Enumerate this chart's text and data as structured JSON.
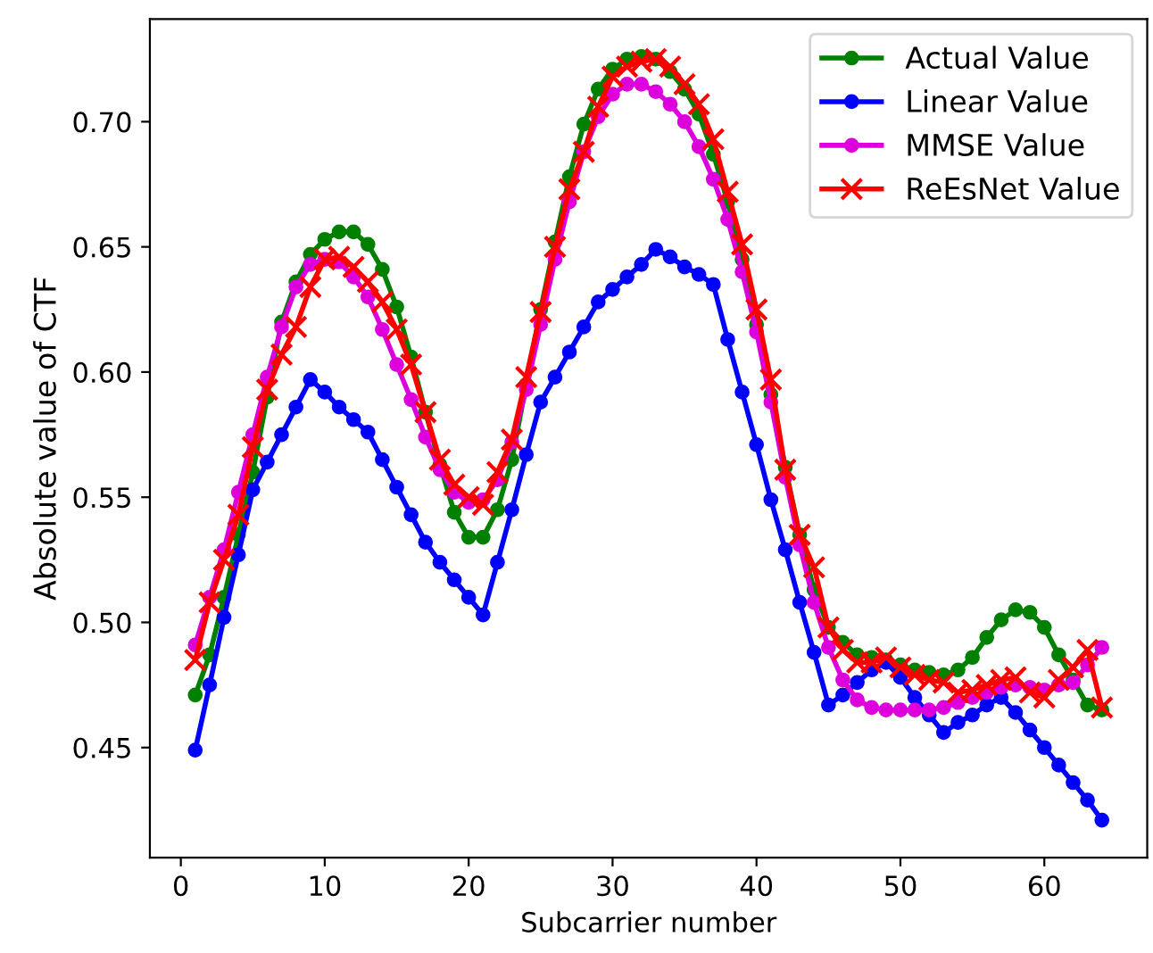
{
  "chart_data": {
    "type": "line",
    "xlabel": "Subcarrier number",
    "ylabel": "Absolute value of CTF",
    "x": [
      1,
      2,
      3,
      4,
      5,
      6,
      7,
      8,
      9,
      10,
      11,
      12,
      13,
      14,
      15,
      16,
      17,
      18,
      19,
      20,
      21,
      22,
      23,
      24,
      25,
      26,
      27,
      28,
      29,
      30,
      31,
      32,
      33,
      34,
      35,
      36,
      37,
      38,
      39,
      40,
      41,
      42,
      43,
      44,
      45,
      46,
      47,
      48,
      49,
      50,
      51,
      52,
      53,
      54,
      55,
      56,
      57,
      58,
      59,
      60,
      61,
      62,
      63,
      64
    ],
    "series": [
      {
        "name": "Actual Value",
        "color": "#008000",
        "marker": "circle",
        "values": [
          0.471,
          0.487,
          0.51,
          0.535,
          0.56,
          0.59,
          0.62,
          0.636,
          0.647,
          0.653,
          0.656,
          0.656,
          0.651,
          0.641,
          0.626,
          0.606,
          0.584,
          0.563,
          0.544,
          0.534,
          0.534,
          0.545,
          0.565,
          0.595,
          0.625,
          0.652,
          0.678,
          0.699,
          0.713,
          0.721,
          0.725,
          0.726,
          0.725,
          0.72,
          0.713,
          0.703,
          0.687,
          0.668,
          0.645,
          0.619,
          0.591,
          0.562,
          0.535,
          0.513,
          0.498,
          0.492,
          0.487,
          0.486,
          0.485,
          0.483,
          0.481,
          0.48,
          0.479,
          0.481,
          0.486,
          0.494,
          0.501,
          0.505,
          0.504,
          0.498,
          0.487,
          0.477,
          0.467,
          0.465
        ]
      },
      {
        "name": "Linear Value",
        "color": "#0000ff",
        "marker": "circle",
        "values": [
          0.449,
          0.475,
          0.502,
          0.527,
          0.553,
          0.564,
          0.575,
          0.586,
          0.597,
          0.592,
          0.586,
          0.581,
          0.576,
          0.565,
          0.554,
          0.543,
          0.532,
          0.524,
          0.517,
          0.51,
          0.503,
          0.524,
          0.545,
          0.567,
          0.588,
          0.598,
          0.608,
          0.618,
          0.628,
          0.633,
          0.638,
          0.643,
          0.649,
          0.646,
          0.642,
          0.639,
          0.635,
          0.613,
          0.592,
          0.571,
          0.549,
          0.529,
          0.508,
          0.488,
          0.467,
          0.471,
          0.476,
          0.481,
          0.484,
          0.478,
          0.47,
          0.463,
          0.456,
          0.46,
          0.463,
          0.467,
          0.47,
          0.464,
          0.457,
          0.45,
          0.443,
          0.436,
          0.429,
          0.421
        ]
      },
      {
        "name": "MMSE Value",
        "color": "#dd00dd",
        "marker": "circle",
        "values": [
          0.491,
          0.51,
          0.529,
          0.552,
          0.575,
          0.598,
          0.618,
          0.634,
          0.643,
          0.645,
          0.644,
          0.638,
          0.63,
          0.617,
          0.603,
          0.589,
          0.574,
          0.561,
          0.552,
          0.548,
          0.549,
          0.557,
          0.572,
          0.593,
          0.619,
          0.645,
          0.668,
          0.688,
          0.702,
          0.711,
          0.715,
          0.715,
          0.712,
          0.707,
          0.7,
          0.69,
          0.677,
          0.661,
          0.64,
          0.616,
          0.588,
          0.558,
          0.531,
          0.508,
          0.49,
          0.477,
          0.469,
          0.466,
          0.465,
          0.465,
          0.465,
          0.465,
          0.466,
          0.468,
          0.47,
          0.472,
          0.474,
          0.475,
          0.474,
          0.473,
          0.475,
          0.476,
          0.483,
          0.49
        ]
      },
      {
        "name": "ReEsNet Value",
        "color": "#ff0000",
        "marker": "cross",
        "values": [
          0.485,
          0.508,
          0.525,
          0.543,
          0.57,
          0.593,
          0.607,
          0.618,
          0.634,
          0.645,
          0.646,
          0.642,
          0.636,
          0.628,
          0.617,
          0.603,
          0.584,
          0.565,
          0.555,
          0.55,
          0.547,
          0.56,
          0.573,
          0.598,
          0.624,
          0.65,
          0.673,
          0.688,
          0.706,
          0.718,
          0.722,
          0.724,
          0.725,
          0.722,
          0.715,
          0.707,
          0.693,
          0.672,
          0.651,
          0.625,
          0.597,
          0.561,
          0.535,
          0.522,
          0.498,
          0.489,
          0.484,
          0.484,
          0.486,
          0.482,
          0.479,
          0.477,
          0.476,
          0.472,
          0.473,
          0.475,
          0.477,
          0.478,
          0.472,
          0.47,
          0.477,
          0.482,
          0.489,
          0.466
        ]
      }
    ],
    "xlim": [
      -2.15,
      67.15
    ],
    "xticks": [
      0,
      10,
      20,
      30,
      40,
      50,
      60
    ],
    "ylim": [
      0.406,
      0.741
    ],
    "yticks": [
      {
        "value": 0.45,
        "label": "0.45"
      },
      {
        "value": 0.5,
        "label": "0.50"
      },
      {
        "value": 0.55,
        "label": "0.55"
      },
      {
        "value": 0.6,
        "label": "0.60"
      },
      {
        "value": 0.65,
        "label": "0.65"
      },
      {
        "value": 0.7,
        "label": "0.70"
      }
    ],
    "grid": false,
    "legend": "top right",
    "line_style": "solid"
  }
}
